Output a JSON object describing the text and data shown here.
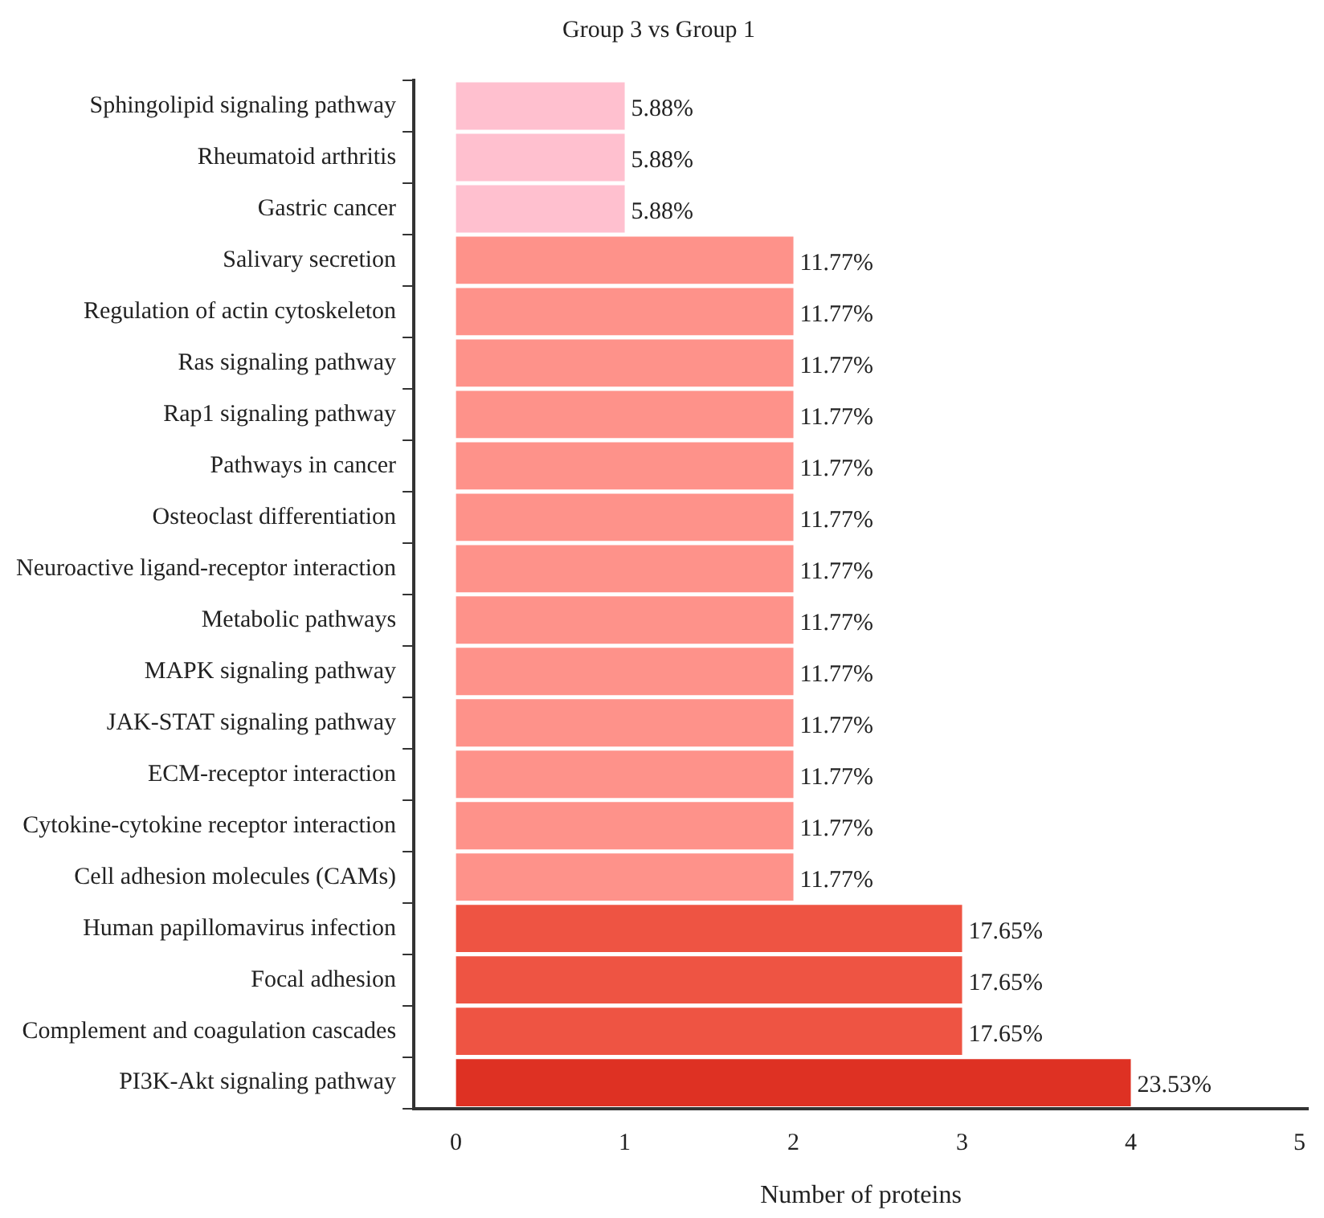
{
  "chart_data": {
    "type": "bar",
    "orientation": "horizontal",
    "title": "Group 3 vs Group 1",
    "xlabel": "Number of proteins",
    "categories": [
      "Sphingolipid signaling pathway",
      "Rheumatoid arthritis",
      "Gastric cancer",
      "Salivary secretion",
      "Regulation of actin cytoskeleton",
      "Ras signaling pathway",
      "Rap1 signaling pathway",
      "Pathways in cancer",
      "Osteoclast differentiation",
      "Neuroactive ligand-receptor interaction",
      "Metabolic pathways",
      "MAPK signaling pathway",
      "JAK-STAT signaling pathway",
      "ECM-receptor interaction",
      "Cytokine-cytokine receptor interaction",
      "Cell adhesion molecules (CAMs)",
      "Human papillomavirus infection",
      "Focal adhesion",
      "Complement and coagulation cascades",
      "PI3K-Akt signaling pathway"
    ],
    "values": [
      1,
      1,
      1,
      2,
      2,
      2,
      2,
      2,
      2,
      2,
      2,
      2,
      2,
      2,
      2,
      2,
      3,
      3,
      3,
      4
    ],
    "annotations": [
      {
        "text": "5.88%",
        "x": 1,
        "y": "Sphingolipid signaling pathway"
      },
      {
        "text": "5.88%",
        "x": 1,
        "y": "Rheumatoid arthritis"
      },
      {
        "text": "5.88%",
        "x": 1,
        "y": "Gastric cancer"
      },
      {
        "text": "11.77%",
        "x": 2,
        "y": "Salivary secretion"
      },
      {
        "text": "11.77%",
        "x": 2,
        "y": "Regulation of actin cytoskeleton"
      },
      {
        "text": "11.77%",
        "x": 2,
        "y": "Ras signaling pathway"
      },
      {
        "text": "11.77%",
        "x": 2,
        "y": "Rap1 signaling pathway"
      },
      {
        "text": "11.77%",
        "x": 2,
        "y": "Pathways in cancer"
      },
      {
        "text": "11.77%",
        "x": 2,
        "y": "Osteoclast differentiation"
      },
      {
        "text": "11.77%",
        "x": 2,
        "y": "Neuroactive ligand-receptor interaction"
      },
      {
        "text": "11.77%",
        "x": 2,
        "y": "Metabolic pathways"
      },
      {
        "text": "11.77%",
        "x": 2,
        "y": "MAPK signaling pathway"
      },
      {
        "text": "11.77%",
        "x": 2,
        "y": "JAK-STAT signaling pathway"
      },
      {
        "text": "11.77%",
        "x": 2,
        "y": "ECM-receptor interaction"
      },
      {
        "text": "11.77%",
        "x": 2,
        "y": "Cytokine-cytokine receptor interaction"
      },
      {
        "text": "11.77%",
        "x": 2,
        "y": "Cell adhesion molecules (CAMs)"
      },
      {
        "text": "17.65%",
        "x": 3,
        "y": "Human papillomavirus infection"
      },
      {
        "text": "17.65%",
        "x": 3,
        "y": "Focal adhesion"
      },
      {
        "text": "17.65%",
        "x": 3,
        "y": "Complement and coagulation cascades"
      },
      {
        "text": "23.53%",
        "x": 4,
        "y": "PI3K-Akt signaling pathway"
      }
    ],
    "colors": [
      "#ffc0cf",
      "#ffc0cf",
      "#ffc0cf",
      "#fe928a",
      "#fe928a",
      "#fe928a",
      "#fe928a",
      "#fe928a",
      "#fe928a",
      "#fe928a",
      "#fe928a",
      "#fe928a",
      "#fe928a",
      "#fe928a",
      "#fe928a",
      "#fe928a",
      "#ee5443",
      "#ee5443",
      "#ee5443",
      "#de3123"
    ],
    "xlim": [
      -0.25,
      5.05
    ],
    "xticks": [
      0,
      1,
      2,
      3,
      4,
      5
    ],
    "grid": false,
    "legend": false
  }
}
